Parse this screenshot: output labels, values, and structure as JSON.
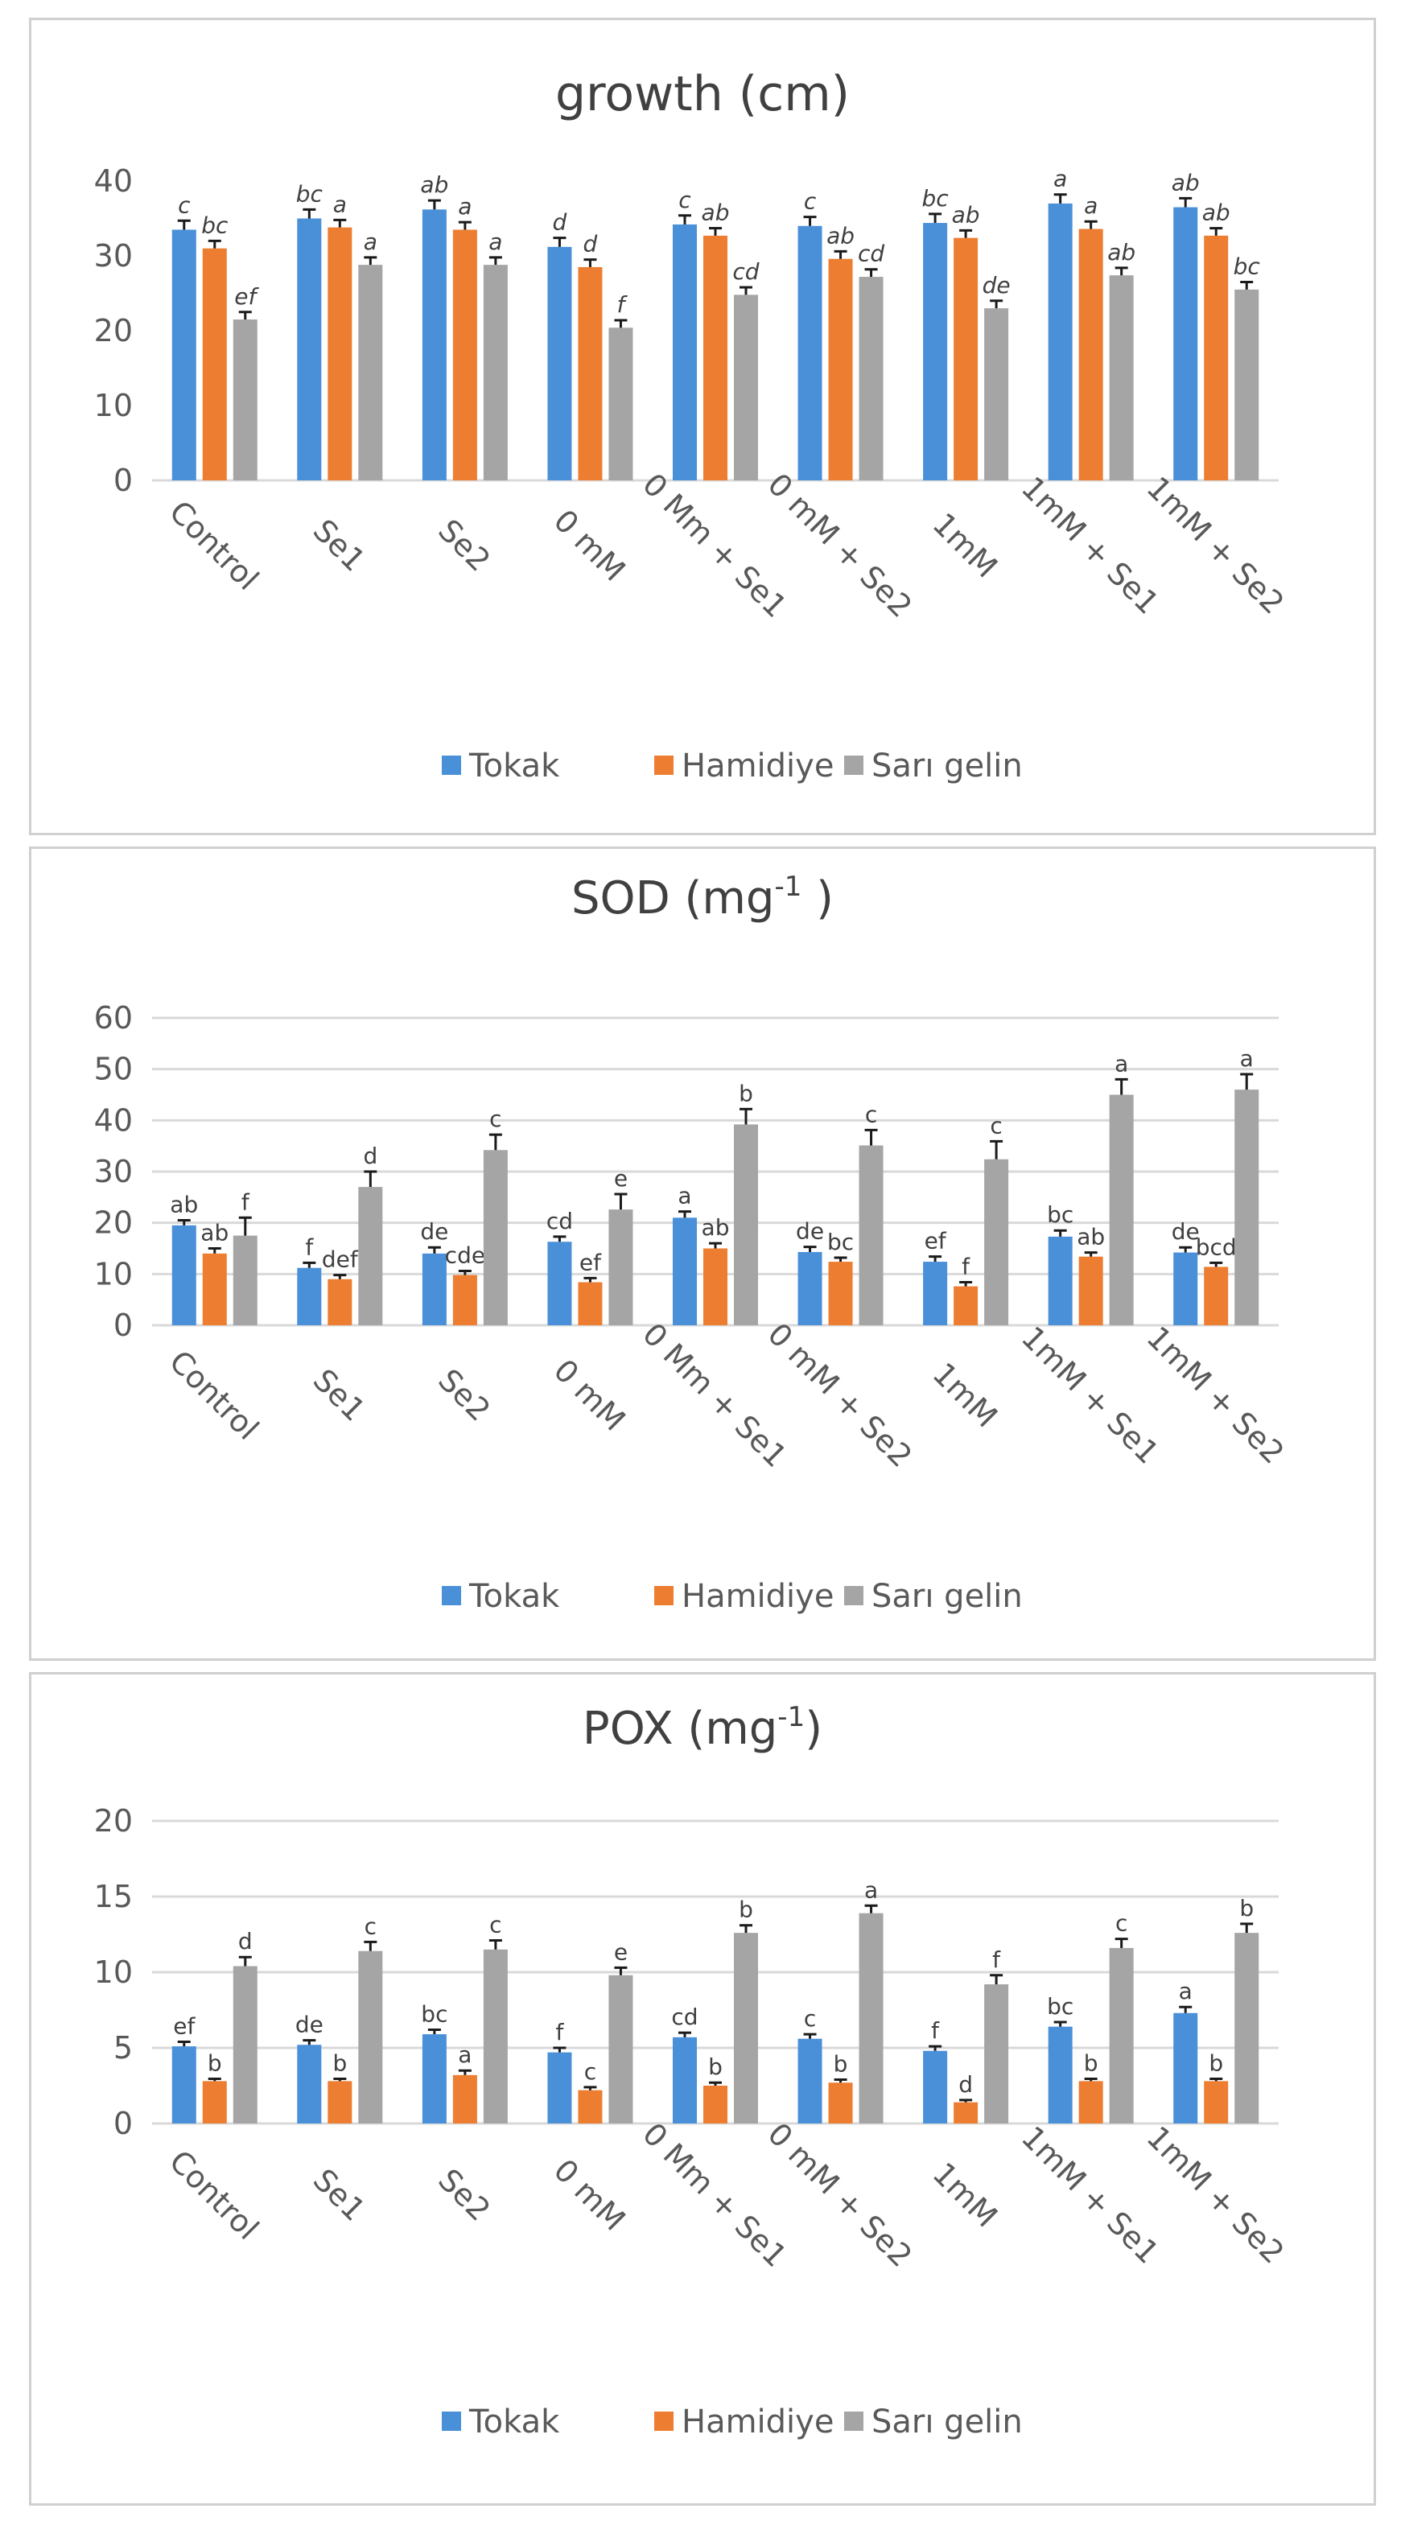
{
  "chart_data": [
    {
      "type": "bar",
      "title": "growth (cm)",
      "categories": [
        "Control",
        "Se1",
        "Se2",
        "0 mM",
        "0 Mm + Se1",
        "0 mM + Se2",
        "1mM",
        "1mM + Se1",
        "1mM + Se2"
      ],
      "ylim": [
        0,
        40
      ],
      "yticks": [
        0,
        10,
        20,
        30,
        40
      ],
      "grid": false,
      "legend": "bottom",
      "italic_labels": true,
      "series": [
        {
          "name": "Tokak",
          "color": "#4a90d9",
          "values": [
            33.5,
            35,
            36.2,
            31.2,
            34.2,
            34,
            34.4,
            37,
            36.5
          ],
          "errors": [
            1.2,
            1.2,
            1.2,
            1.2,
            1.2,
            1.2,
            1.2,
            1.2,
            1.2
          ],
          "labels": [
            "c",
            "bc",
            "ab",
            "d",
            "c",
            "c",
            "bc",
            "a",
            "ab"
          ]
        },
        {
          "name": "Hamidiye",
          "color": "#ed7d31",
          "values": [
            31,
            33.8,
            33.5,
            28.5,
            32.7,
            29.6,
            32.4,
            33.6,
            32.7
          ],
          "errors": [
            1.0,
            1.0,
            1.0,
            1.0,
            1.0,
            1.0,
            1.0,
            1.0,
            1.0
          ],
          "labels": [
            "bc",
            "a",
            "a",
            "d",
            "ab",
            "ab",
            "ab",
            "a",
            "ab"
          ]
        },
        {
          "name": "Sarı gelin",
          "color": "#a5a5a5",
          "values": [
            21.5,
            28.8,
            28.8,
            20.4,
            24.8,
            27.2,
            23,
            27.4,
            25.5
          ],
          "errors": [
            1.0,
            1.0,
            1.0,
            1.0,
            1.0,
            1.0,
            1.0,
            1.0,
            1.0
          ],
          "labels": [
            "ef",
            "a",
            "a",
            "f",
            "cd",
            "cd",
            "de",
            "ab",
            "bc"
          ]
        }
      ]
    },
    {
      "type": "bar",
      "title": "SOD (mg-1 )",
      "title_base": "SOD (mg",
      "title_sup": "-1",
      "title_end": " )",
      "categories": [
        "Control",
        "Se1",
        "Se2",
        "0 mM",
        "0 Mm + Se1",
        "0 mM + Se2",
        "1mM",
        "1mM + Se1",
        "1mM + Se2"
      ],
      "ylim": [
        0,
        60
      ],
      "yticks": [
        0,
        10,
        20,
        30,
        40,
        50,
        60
      ],
      "grid": true,
      "legend": "bottom",
      "italic_labels": false,
      "series": [
        {
          "name": "Tokak",
          "color": "#4a90d9",
          "values": [
            19.5,
            11.2,
            14,
            16.3,
            21,
            14.3,
            12.4,
            17.3,
            14.2
          ],
          "errors": [
            1.0,
            1.0,
            1.2,
            1.0,
            1.2,
            1.0,
            1.0,
            1.2,
            1.0
          ],
          "labels": [
            "ab",
            "f",
            "de",
            "cd",
            "a",
            "de",
            "ef",
            "bc",
            "de"
          ]
        },
        {
          "name": "Hamidiye",
          "color": "#ed7d31",
          "values": [
            14,
            9,
            9.8,
            8.4,
            15,
            12.4,
            7.6,
            13.4,
            11.4
          ],
          "errors": [
            1.0,
            0.8,
            0.8,
            0.8,
            1.0,
            0.8,
            0.8,
            0.8,
            0.8
          ],
          "labels": [
            "ab",
            "def",
            "cde",
            "ef",
            "ab",
            "bc",
            "f",
            "ab",
            "bcd"
          ]
        },
        {
          "name": "Sarı gelin",
          "color": "#a5a5a5",
          "values": [
            17.5,
            27,
            34.2,
            22.6,
            39.2,
            35.1,
            32.4,
            45,
            46
          ],
          "errors": [
            3.5,
            3.0,
            3.0,
            3.0,
            3.0,
            3.0,
            3.5,
            3.0,
            3.0
          ],
          "labels": [
            "f",
            "d",
            "c",
            "e",
            "b",
            "c",
            "c",
            "a",
            "a"
          ]
        }
      ]
    },
    {
      "type": "bar",
      "title": "POX (mg-1)",
      "title_base": "POX (mg",
      "title_sup": "-1",
      "title_end": ")",
      "categories": [
        "Control",
        "Se1",
        "Se2",
        "0 mM",
        "0 Mm + Se1",
        "0 mM + Se2",
        "1mM",
        "1mM + Se1",
        "1mM + Se2"
      ],
      "ylim": [
        0,
        20
      ],
      "yticks": [
        0,
        5,
        10,
        15,
        20
      ],
      "grid": true,
      "legend": "bottom",
      "italic_labels": false,
      "series": [
        {
          "name": "Tokak",
          "color": "#4a90d9",
          "values": [
            5.1,
            5.2,
            5.9,
            4.7,
            5.7,
            5.6,
            4.8,
            6.4,
            7.3
          ],
          "errors": [
            0.3,
            0.3,
            0.3,
            0.3,
            0.3,
            0.3,
            0.3,
            0.3,
            0.4
          ],
          "labels": [
            "ef",
            "de",
            "bc",
            "f",
            "cd",
            "c",
            "f",
            "bc",
            "a"
          ]
        },
        {
          "name": "Hamidiye",
          "color": "#ed7d31",
          "values": [
            2.8,
            2.8,
            3.2,
            2.2,
            2.5,
            2.7,
            1.4,
            2.8,
            2.8
          ],
          "errors": [
            0.15,
            0.15,
            0.3,
            0.2,
            0.2,
            0.2,
            0.15,
            0.15,
            0.15
          ],
          "labels": [
            "b",
            "b",
            "a",
            "c",
            "b",
            "b",
            "d",
            "b",
            "b"
          ]
        },
        {
          "name": "Sarı gelin",
          "color": "#a5a5a5",
          "values": [
            10.4,
            11.4,
            11.5,
            9.8,
            12.6,
            13.9,
            9.2,
            11.6,
            12.6
          ],
          "errors": [
            0.6,
            0.6,
            0.6,
            0.5,
            0.5,
            0.5,
            0.6,
            0.6,
            0.6
          ],
          "labels": [
            "d",
            "c",
            "c",
            "e",
            "b",
            "a",
            "f",
            "c",
            "b"
          ]
        }
      ]
    }
  ]
}
